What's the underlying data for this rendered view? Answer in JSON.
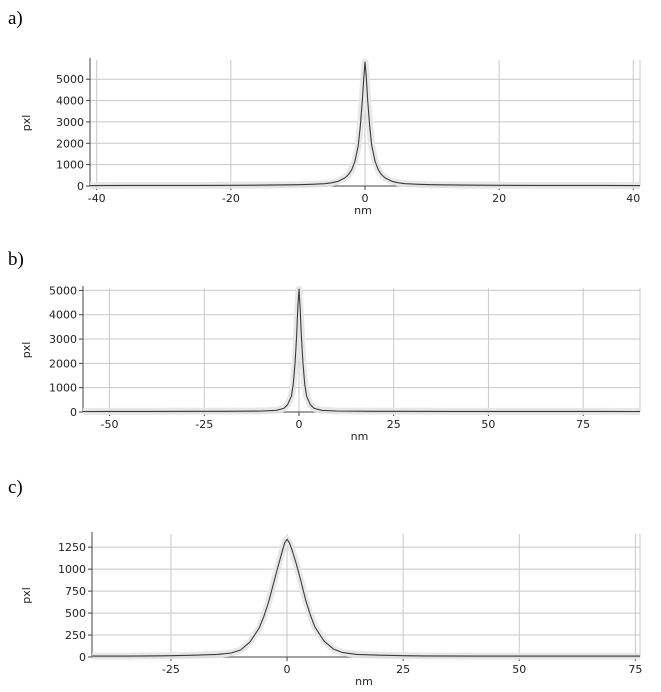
{
  "panels": [
    {
      "label": "a)"
    },
    {
      "label": "b)"
    },
    {
      "label": "c)"
    }
  ],
  "colors": {
    "line": "#3a3a3a",
    "grid": "#c8c8c8",
    "axis": "#444444",
    "shadow": "#e6e6e6"
  },
  "chart_data": [
    {
      "type": "line",
      "title": "",
      "xlabel": "nm",
      "ylabel": "pxl",
      "xlim": [
        -41,
        41
      ],
      "ylim": [
        0,
        5900
      ],
      "xticks": [
        -40,
        -20,
        0,
        20,
        40
      ],
      "yticks": [
        0,
        1000,
        2000,
        3000,
        4000,
        5000
      ],
      "grid": true,
      "series": [
        {
          "x": [
            -41,
            -35,
            -30,
            -25,
            -20,
            -15,
            -10,
            -8,
            -6,
            -5,
            -4,
            -3,
            -2.5,
            -2,
            -1.5,
            -1,
            -0.7,
            -0.4,
            -0.2,
            0,
            0.2,
            0.4,
            0.7,
            1,
            1.5,
            2,
            2.5,
            3,
            4,
            5,
            6,
            8,
            10,
            15,
            20,
            25,
            30,
            35,
            41
          ],
          "y": [
            20,
            30,
            30,
            30,
            35,
            40,
            60,
            80,
            110,
            150,
            220,
            380,
            520,
            750,
            1150,
            1900,
            2800,
            4000,
            5000,
            5800,
            5100,
            4000,
            2800,
            1900,
            1150,
            750,
            520,
            380,
            220,
            150,
            110,
            80,
            60,
            40,
            35,
            30,
            30,
            30,
            20
          ]
        }
      ]
    },
    {
      "type": "line",
      "title": "",
      "xlabel": "nm",
      "ylabel": "pxl",
      "xlim": [
        -57,
        90
      ],
      "ylim": [
        0,
        5100
      ],
      "xticks": [
        -50,
        -25,
        0,
        25,
        50,
        75
      ],
      "yticks": [
        0,
        1000,
        2000,
        3000,
        4000,
        5000
      ],
      "grid": true,
      "series": [
        {
          "x": [
            -57,
            -50,
            -40,
            -30,
            -20,
            -10,
            -6,
            -4,
            -3,
            -2,
            -1.5,
            -1,
            -0.6,
            -0.3,
            0,
            0.3,
            0.6,
            1,
            1.5,
            2,
            3,
            4,
            6,
            10,
            20,
            30,
            40,
            50,
            60,
            70,
            80,
            90
          ],
          "y": [
            20,
            25,
            25,
            30,
            30,
            40,
            70,
            150,
            300,
            650,
            1150,
            2100,
            3200,
            4300,
            5050,
            4300,
            3200,
            2100,
            1150,
            650,
            300,
            150,
            70,
            40,
            30,
            30,
            25,
            25,
            25,
            25,
            25,
            20
          ]
        }
      ]
    },
    {
      "type": "line",
      "title": "",
      "xlabel": "nm",
      "ylabel": "pxl",
      "xlim": [
        -42,
        76
      ],
      "ylim": [
        0,
        1400
      ],
      "xticks": [
        -25,
        0,
        25,
        50,
        75
      ],
      "yticks": [
        0,
        250,
        500,
        750,
        1000,
        1250
      ],
      "grid": true,
      "series": [
        {
          "x": [
            -42,
            -35,
            -30,
            -25,
            -20,
            -15,
            -12,
            -10,
            -8,
            -6,
            -5,
            -4,
            -3,
            -2,
            -1,
            -0.5,
            0,
            0.5,
            1,
            2,
            3,
            4,
            5,
            6,
            8,
            10,
            12,
            15,
            20,
            25,
            30,
            40,
            50,
            60,
            76
          ],
          "y": [
            10,
            10,
            12,
            15,
            20,
            30,
            45,
            80,
            170,
            330,
            460,
            620,
            820,
            1020,
            1210,
            1300,
            1340,
            1300,
            1230,
            1060,
            860,
            650,
            480,
            340,
            180,
            90,
            50,
            30,
            20,
            15,
            12,
            10,
            10,
            10,
            10
          ]
        }
      ]
    }
  ]
}
